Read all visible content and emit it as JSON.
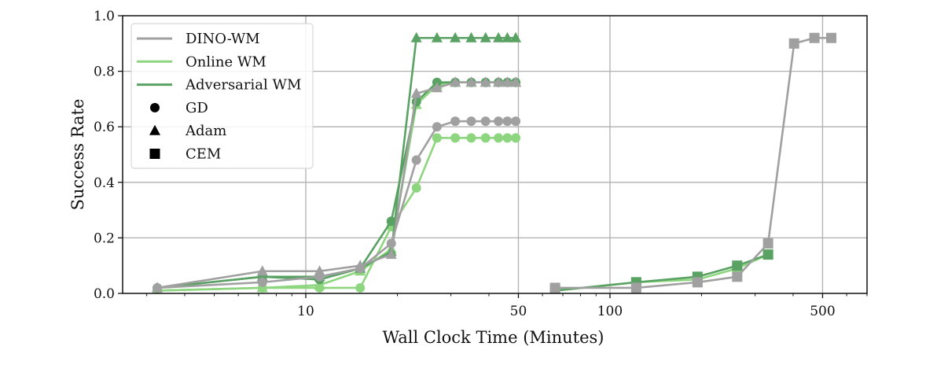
{
  "chart_data": {
    "type": "line",
    "title": "",
    "xlabel": "Wall Clock Time (Minutes)",
    "ylabel": "Success Rate",
    "xscale": "log",
    "xlim": [
      2.5,
      700
    ],
    "ylim": [
      0.0,
      1.0
    ],
    "grid": true,
    "legend_position": "upper left",
    "xticks": [
      10,
      50,
      100,
      500
    ],
    "xtick_labels": [
      "10",
      "50",
      "100",
      "500"
    ],
    "yticks": [
      0.0,
      0.2,
      0.4,
      0.6,
      0.8,
      1.0
    ],
    "ytick_labels": [
      "0.0",
      "0.2",
      "0.4",
      "0.6",
      "0.8",
      "1.0"
    ],
    "colors": {
      "DINO-WM": "#a0a0a0",
      "Online WM": "#8dd67f",
      "Adversarial WM": "#5aa264"
    },
    "legend": {
      "models": [
        "DINO-WM",
        "Online WM",
        "Adversarial WM"
      ],
      "optimizers": [
        {
          "label": "GD",
          "marker": "circle"
        },
        {
          "label": "Adam",
          "marker": "triangle"
        },
        {
          "label": "CEM",
          "marker": "square"
        }
      ]
    },
    "series": [
      {
        "name": "Online WM - GD",
        "model": "Online WM",
        "optimizer": "GD",
        "marker": "circle",
        "x": [
          3.25,
          7.2,
          11.1,
          15.1,
          19.1,
          23.1,
          27,
          31,
          35,
          39,
          43,
          46,
          49
        ],
        "y": [
          0.01,
          0.02,
          0.02,
          0.02,
          0.24,
          0.38,
          0.56,
          0.56,
          0.56,
          0.56,
          0.56,
          0.56,
          0.56
        ]
      },
      {
        "name": "Online WM - Adam",
        "model": "Online WM",
        "optimizer": "Adam",
        "marker": "triangle",
        "x": [
          3.25,
          7.2,
          11.1,
          15.1,
          19.1,
          23.1,
          27,
          31,
          35,
          39,
          43,
          46,
          49
        ],
        "y": [
          0.01,
          0.02,
          0.03,
          0.08,
          0.16,
          0.68,
          0.75,
          0.76,
          0.76,
          0.76,
          0.76,
          0.76,
          0.76
        ]
      },
      {
        "name": "Adversarial WM - GD",
        "model": "Adversarial WM",
        "optimizer": "GD",
        "marker": "circle",
        "x": [
          3.25,
          7.2,
          11.1,
          15.1,
          19.1,
          23.1,
          27,
          31,
          35,
          39,
          43,
          46,
          49
        ],
        "y": [
          0.02,
          0.06,
          0.05,
          0.09,
          0.26,
          0.69,
          0.76,
          0.76,
          0.76,
          0.76,
          0.76,
          0.76,
          0.76
        ]
      },
      {
        "name": "Adversarial WM - Adam",
        "model": "Adversarial WM",
        "optimizer": "Adam",
        "marker": "triangle",
        "x": [
          3.25,
          7.2,
          11.1,
          15.1,
          19.1,
          23.1,
          27,
          31,
          35,
          39,
          43,
          46,
          49
        ],
        "y": [
          0.02,
          0.06,
          0.06,
          0.09,
          0.15,
          0.92,
          0.92,
          0.92,
          0.92,
          0.92,
          0.92,
          0.92,
          0.92
        ]
      },
      {
        "name": "DINO-WM - GD",
        "model": "DINO-WM",
        "optimizer": "GD",
        "marker": "circle",
        "x": [
          3.25,
          7.2,
          11.1,
          15.1,
          19.1,
          23.1,
          27,
          31,
          35,
          39,
          43,
          46,
          49
        ],
        "y": [
          0.02,
          0.04,
          0.06,
          0.09,
          0.18,
          0.48,
          0.6,
          0.62,
          0.62,
          0.62,
          0.62,
          0.62,
          0.62
        ]
      },
      {
        "name": "DINO-WM - Adam",
        "model": "DINO-WM",
        "optimizer": "Adam",
        "marker": "triangle",
        "x": [
          3.25,
          7.2,
          11.1,
          15.1,
          19.1,
          23.1,
          27,
          31,
          35,
          39,
          43,
          46,
          49
        ],
        "y": [
          0.02,
          0.08,
          0.08,
          0.1,
          0.14,
          0.72,
          0.74,
          0.76,
          0.76,
          0.76,
          0.76,
          0.76,
          0.76
        ]
      },
      {
        "name": "Online WM - CEM",
        "model": "Online WM",
        "optimizer": "CEM",
        "marker": "square",
        "x": [
          66,
          122,
          194,
          262,
          331
        ],
        "y": [
          0.01,
          0.04,
          0.05,
          0.09,
          0.14
        ]
      },
      {
        "name": "Adversarial WM - CEM",
        "model": "Adversarial WM",
        "optimizer": "CEM",
        "marker": "square",
        "x": [
          66,
          122,
          194,
          262,
          331
        ],
        "y": [
          0.01,
          0.04,
          0.06,
          0.1,
          0.14
        ]
      },
      {
        "name": "DINO-WM - CEM",
        "model": "DINO-WM",
        "optimizer": "CEM",
        "marker": "square",
        "x": [
          66,
          122,
          194,
          262,
          331,
          403,
          470,
          534
        ],
        "y": [
          0.02,
          0.02,
          0.04,
          0.06,
          0.18,
          0.9,
          0.92,
          0.92
        ]
      }
    ]
  }
}
